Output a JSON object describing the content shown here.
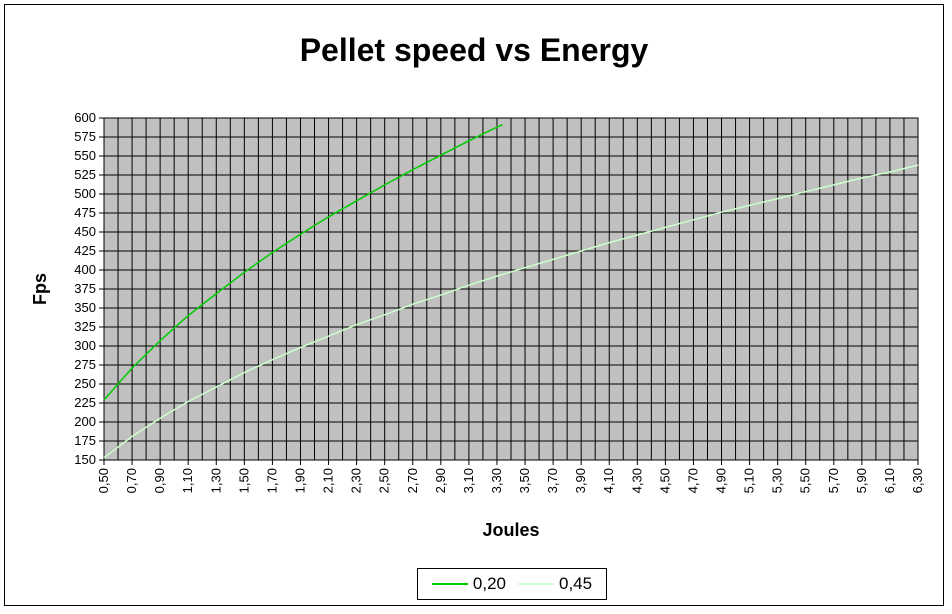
{
  "chart_data": {
    "type": "line",
    "title": "Pellet speed vs Energy",
    "xlabel": "Joules",
    "ylabel": "Fps",
    "xlim": [
      0.5,
      6.3
    ],
    "ylim": [
      150,
      600
    ],
    "y_ticks": [
      150,
      175,
      200,
      225,
      250,
      275,
      300,
      325,
      350,
      375,
      400,
      425,
      450,
      475,
      500,
      525,
      550,
      575,
      600
    ],
    "x_tick_labels": [
      "0,50",
      "0,70",
      "0,90",
      "1,10",
      "1,30",
      "1,50",
      "1,70",
      "1,90",
      "2,10",
      "2,30",
      "2,50",
      "2,70",
      "2,90",
      "3,10",
      "3,30",
      "3,50",
      "3,70",
      "3,90",
      "4,10",
      "4,30",
      "4,50",
      "4,70",
      "4,90",
      "5,10",
      "5,30",
      "5,50",
      "5,70",
      "5,90",
      "6,10",
      "6,30"
    ],
    "grid": true,
    "legend_position": "bottom",
    "plot_background": "#c0c0c0",
    "series": [
      {
        "name": "0,20",
        "color": "#00cc00",
        "x": [
          0.5,
          0.7,
          0.9,
          1.1,
          1.3,
          1.5,
          1.7,
          1.9,
          2.1,
          2.3,
          2.5,
          2.7,
          2.9,
          3.1,
          3.3,
          3.34
        ],
        "y": [
          229,
          271,
          307,
          340,
          369,
          397,
          423,
          447,
          470,
          491,
          512,
          532,
          551,
          570,
          588,
          591
        ]
      },
      {
        "name": "0,45",
        "color": "#ccffcc",
        "x": [
          0.5,
          0.7,
          0.9,
          1.1,
          1.3,
          1.5,
          1.7,
          1.9,
          2.1,
          2.3,
          2.5,
          2.7,
          2.9,
          3.1,
          3.3,
          3.5,
          3.7,
          3.9,
          4.1,
          4.3,
          4.5,
          4.7,
          4.9,
          5.1,
          5.3,
          5.5,
          5.7,
          5.9,
          6.1,
          6.3
        ],
        "y": [
          153,
          181,
          205,
          227,
          246,
          265,
          282,
          298,
          313,
          328,
          341,
          355,
          367,
          380,
          392,
          403,
          414,
          425,
          436,
          446,
          456,
          466,
          476,
          485,
          494,
          503,
          512,
          521,
          529,
          538
        ]
      }
    ]
  }
}
